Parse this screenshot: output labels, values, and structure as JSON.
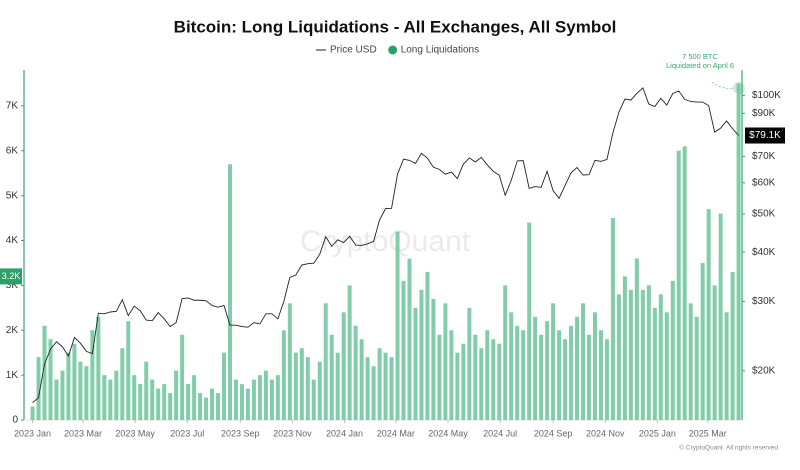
{
  "chart_data": {
    "type": "bar-line",
    "title": "Bitcoin: Long Liquidations - All Exchanges, All Symbol",
    "watermark": "CryptoQuant",
    "footer": "© CryptoQuant. All rights reserved",
    "annotation": {
      "lines": [
        "7 500 BTC",
        "Liquidated on April 6"
      ],
      "color": "#3aa66b"
    },
    "current_labels": {
      "liquidations": {
        "value": 3200,
        "label": "3.2K",
        "color": "#2e9e6b"
      },
      "price": {
        "value": 79100,
        "label": "$79.1K",
        "color": "#000000"
      }
    },
    "grid": false,
    "xlim": [
      "2022-12-22",
      "2025-04-10"
    ],
    "xticks": [
      {
        "value": "2023-01-01",
        "label": "2023 Jan"
      },
      {
        "value": "2023-03-01",
        "label": "2023 Mar"
      },
      {
        "value": "2023-05-01",
        "label": "2023 May"
      },
      {
        "value": "2023-07-01",
        "label": "2023 Jul"
      },
      {
        "value": "2023-09-01",
        "label": "2023 Sep"
      },
      {
        "value": "2023-11-01",
        "label": "2023 Nov"
      },
      {
        "value": "2024-01-01",
        "label": "2024 Jan"
      },
      {
        "value": "2024-03-01",
        "label": "2024 Mar"
      },
      {
        "value": "2024-05-01",
        "label": "2024 May"
      },
      {
        "value": "2024-07-01",
        "label": "2024 Jul"
      },
      {
        "value": "2024-09-01",
        "label": "2024 Sep"
      },
      {
        "value": "2024-11-01",
        "label": "2024 Nov"
      },
      {
        "value": "2025-01-01",
        "label": "2025 Jan"
      },
      {
        "value": "2025-03-01",
        "label": "2025 Mar"
      }
    ],
    "ylim": [
      0,
      7800
    ],
    "yticks": [
      0,
      {
        "value": 1000,
        "label": "1K"
      },
      {
        "value": 2000,
        "label": "2K"
      },
      {
        "value": 3000,
        "label": "3K"
      },
      {
        "value": 4000,
        "label": "4K"
      },
      {
        "value": 5000,
        "label": "5K"
      },
      {
        "value": 6000,
        "label": "6K"
      },
      {
        "value": 7000,
        "label": "7K"
      }
    ],
    "y2lim": [
      15000,
      116000
    ],
    "y2log": true,
    "y2ticks": [
      {
        "value": 20000,
        "label": "$20K"
      },
      {
        "value": 30000,
        "label": "$30K"
      },
      {
        "value": 40000,
        "label": "$40K"
      },
      {
        "value": 50000,
        "label": "$50K"
      },
      {
        "value": 60000,
        "label": "$60K"
      },
      {
        "value": 70000,
        "label": "$70K"
      },
      {
        "value": 90000,
        "label": "$90K"
      },
      {
        "value": 100000,
        "label": "$100K"
      }
    ],
    "axis_color": "#3aa66b",
    "x": [
      "2023-01-01",
      "2023-01-08",
      "2023-01-15",
      "2023-01-22",
      "2023-01-29",
      "2023-02-05",
      "2023-02-12",
      "2023-02-19",
      "2023-02-26",
      "2023-03-05",
      "2023-03-12",
      "2023-03-19",
      "2023-03-26",
      "2023-04-02",
      "2023-04-09",
      "2023-04-16",
      "2023-04-23",
      "2023-04-30",
      "2023-05-07",
      "2023-05-14",
      "2023-05-21",
      "2023-05-28",
      "2023-06-04",
      "2023-06-11",
      "2023-06-18",
      "2023-06-25",
      "2023-07-02",
      "2023-07-09",
      "2023-07-16",
      "2023-07-23",
      "2023-07-30",
      "2023-08-06",
      "2023-08-13",
      "2023-08-20",
      "2023-08-27",
      "2023-09-03",
      "2023-09-10",
      "2023-09-17",
      "2023-09-24",
      "2023-10-01",
      "2023-10-08",
      "2023-10-15",
      "2023-10-22",
      "2023-10-29",
      "2023-11-05",
      "2023-11-12",
      "2023-11-19",
      "2023-11-26",
      "2023-12-03",
      "2023-12-10",
      "2023-12-17",
      "2023-12-24",
      "2023-12-31",
      "2024-01-07",
      "2024-01-14",
      "2024-01-21",
      "2024-01-28",
      "2024-02-04",
      "2024-02-11",
      "2024-02-18",
      "2024-02-25",
      "2024-03-03",
      "2024-03-10",
      "2024-03-17",
      "2024-03-24",
      "2024-03-31",
      "2024-04-07",
      "2024-04-14",
      "2024-04-21",
      "2024-04-28",
      "2024-05-05",
      "2024-05-12",
      "2024-05-19",
      "2024-05-26",
      "2024-06-02",
      "2024-06-09",
      "2024-06-16",
      "2024-06-23",
      "2024-06-30",
      "2024-07-07",
      "2024-07-14",
      "2024-07-21",
      "2024-07-28",
      "2024-08-04",
      "2024-08-11",
      "2024-08-18",
      "2024-08-25",
      "2024-09-01",
      "2024-09-08",
      "2024-09-15",
      "2024-09-22",
      "2024-09-29",
      "2024-10-06",
      "2024-10-13",
      "2024-10-20",
      "2024-10-27",
      "2024-11-03",
      "2024-11-10",
      "2024-11-17",
      "2024-11-24",
      "2024-12-01",
      "2024-12-08",
      "2024-12-15",
      "2024-12-22",
      "2024-12-29",
      "2025-01-05",
      "2025-01-12",
      "2025-01-19",
      "2025-01-26",
      "2025-02-02",
      "2025-02-09",
      "2025-02-16",
      "2025-02-23",
      "2025-03-02",
      "2025-03-09",
      "2025-03-16",
      "2025-03-23",
      "2025-03-30",
      "2025-04-06"
    ],
    "series": [
      {
        "name": "Long Liquidations",
        "kind": "bar",
        "color": "#6cc49a",
        "values": [
          300,
          1400,
          2100,
          1800,
          900,
          1100,
          1500,
          1700,
          1300,
          1200,
          2000,
          2300,
          1000,
          900,
          1100,
          1600,
          2200,
          1000,
          800,
          1300,
          900,
          700,
          800,
          600,
          1100,
          1900,
          800,
          1000,
          600,
          500,
          700,
          600,
          1500,
          5700,
          900,
          800,
          700,
          900,
          1000,
          1100,
          900,
          1000,
          2000,
          2600,
          1500,
          1600,
          1400,
          900,
          1300,
          2600,
          1900,
          1500,
          2400,
          3000,
          2100,
          1800,
          1400,
          1200,
          1600,
          1500,
          1400,
          4200,
          3100,
          3600,
          2500,
          2900,
          3300,
          2700,
          1900,
          2600,
          2000,
          1500,
          1700,
          2500,
          1900,
          1600,
          2000,
          1800,
          1700,
          3000,
          2400,
          2100,
          2000,
          4400,
          2300,
          1900,
          2200,
          2600,
          2000,
          1800,
          2100,
          2300,
          2600,
          1900,
          2400,
          2000,
          1800,
          4500,
          2800,
          3200,
          2900,
          3600,
          2900,
          3000,
          2500,
          2800,
          2400,
          3100,
          6000,
          6100,
          2600,
          2300,
          3500,
          4700,
          3000,
          4600,
          2400,
          3300,
          7500
        ]
      },
      {
        "name": "Price USD",
        "kind": "line",
        "axis": "y2",
        "color": "#222222",
        "values": [
          16600,
          17100,
          20800,
          22700,
          23700,
          23000,
          21800,
          24300,
          23500,
          22400,
          22100,
          28000,
          27900,
          28200,
          28300,
          30300,
          27600,
          29200,
          28400,
          26900,
          26800,
          28100,
          27100,
          25900,
          26500,
          30500,
          30600,
          30200,
          30200,
          30100,
          29300,
          29000,
          29300,
          26100,
          26100,
          25900,
          25800,
          26500,
          26300,
          27900,
          27900,
          27100,
          30000,
          34500,
          35000,
          37100,
          37400,
          37500,
          39500,
          43800,
          41400,
          43000,
          42300,
          43900,
          41700,
          41600,
          42000,
          42600,
          48300,
          51600,
          51700,
          63100,
          68900,
          68400,
          67200,
          71300,
          69300,
          65700,
          64900,
          63100,
          63900,
          61500,
          66900,
          69400,
          67800,
          69600,
          66600,
          64200,
          62700,
          55800,
          60800,
          68200,
          68300,
          58100,
          58700,
          58400,
          64200,
          57300,
          54800,
          59100,
          63600,
          65600,
          62800,
          62900,
          68400,
          68000,
          68800,
          80400,
          90600,
          97900,
          97300,
          101200,
          104500,
          95100,
          93700,
          98300,
          94500,
          101100,
          102600,
          97700,
          96500,
          96200,
          96200,
          94200,
          80700,
          82600,
          86100,
          82300,
          79100
        ]
      }
    ]
  }
}
